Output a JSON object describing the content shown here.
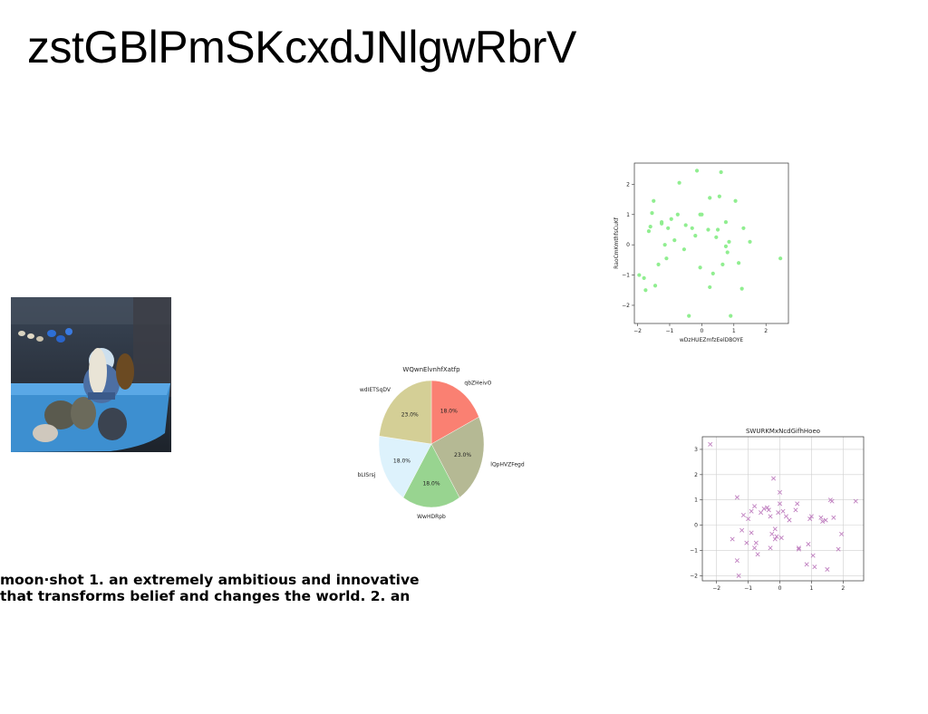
{
  "title": "zstGBlPmSKcxdJNlgwRbrV",
  "caption": {
    "line1": "moon·shot 1. an extremely ambitious and innovative",
    "line2": "that transforms belief and changes the world. 2. an"
  },
  "photo": {
    "icon": "photo-child-wheelbarrow-pumpkins"
  },
  "chart_data": [
    {
      "type": "scatter",
      "title": "",
      "xlabel": "wDzHUEZmfzEelDBOYE",
      "ylabel": "RaoCmKmthfsCuKf",
      "marker": "circle",
      "color": "#90ee90",
      "xlim": [
        -2.1,
        2.7
      ],
      "ylim": [
        -2.6,
        2.7
      ],
      "xticks": [
        -2,
        -1,
        0,
        1,
        2
      ],
      "yticks": [
        -2,
        -1,
        0,
        1,
        2
      ],
      "grid": false,
      "x": [
        -1.95,
        -1.8,
        -1.75,
        -1.65,
        -1.6,
        -1.55,
        -1.5,
        -1.45,
        -1.35,
        -1.25,
        -1.25,
        -1.15,
        -1.1,
        -1.05,
        -0.95,
        -0.85,
        -0.75,
        -0.7,
        -0.55,
        -0.5,
        -0.4,
        -0.3,
        -0.2,
        -0.15,
        -0.05,
        -0.05,
        0.0,
        0.2,
        0.25,
        0.25,
        0.35,
        0.45,
        0.5,
        0.55,
        0.6,
        0.65,
        0.75,
        0.75,
        0.8,
        0.85,
        0.9,
        1.05,
        1.15,
        1.25,
        1.3,
        1.5,
        2.45
      ],
      "y": [
        -1.0,
        -1.1,
        -1.5,
        0.45,
        0.6,
        1.05,
        1.45,
        -1.35,
        -0.65,
        0.75,
        0.7,
        0.0,
        -0.45,
        0.55,
        0.85,
        0.15,
        1.0,
        2.05,
        -0.15,
        0.65,
        -2.35,
        0.55,
        0.3,
        2.45,
        1.0,
        -0.75,
        1.0,
        0.5,
        -1.4,
        1.55,
        -0.95,
        0.25,
        0.5,
        1.6,
        2.4,
        -0.65,
        -0.05,
        0.75,
        -0.25,
        0.1,
        -2.35,
        1.45,
        -0.6,
        -1.45,
        0.55,
        0.1,
        -0.45
      ]
    },
    {
      "type": "pie",
      "title": "WQwnElvnhfXatfp",
      "labels": [
        "qbZHeivO",
        "lQpHVZFegd",
        "WwHDRpb",
        "bLISrsj",
        "wdIETSqDV"
      ],
      "values": [
        18.0,
        23.0,
        18.0,
        18.0,
        23.0
      ],
      "value_labels": [
        "18.0%",
        "23.0%",
        "18.0%",
        "18.0%",
        "23.0%"
      ],
      "colors": [
        "#fa8072",
        "#b5b994",
        "#98d490",
        "#ddf2fc",
        "#d4cf96"
      ],
      "start_angle_deg": 90,
      "counterclock": false
    },
    {
      "type": "scatter",
      "title": "SWURKMxNcdGifhHoeo",
      "xlabel": "",
      "ylabel": "",
      "marker": "x",
      "color": "#c080c0",
      "xlim": [
        -2.45,
        2.65
      ],
      "ylim": [
        -2.2,
        3.5
      ],
      "xticks": [
        -2,
        -1,
        0,
        1,
        2
      ],
      "yticks": [
        -2,
        -1,
        0,
        1,
        2,
        3
      ],
      "grid": true,
      "x": [
        -2.2,
        -1.5,
        -1.35,
        -1.35,
        -1.3,
        -1.2,
        -1.15,
        -1.05,
        -1.0,
        -0.9,
        -0.9,
        -0.8,
        -0.8,
        -0.75,
        -0.7,
        -0.6,
        -0.5,
        -0.4,
        -0.35,
        -0.3,
        -0.3,
        -0.25,
        -0.2,
        -0.15,
        -0.15,
        -0.1,
        -0.05,
        0.0,
        0.0,
        0.05,
        0.1,
        0.2,
        0.3,
        0.5,
        0.55,
        0.6,
        0.6,
        0.85,
        0.9,
        0.95,
        1.0,
        1.05,
        1.1,
        1.3,
        1.35,
        1.45,
        1.5,
        1.6,
        1.65,
        1.7,
        1.85,
        1.95,
        2.4
      ],
      "y": [
        3.2,
        -0.55,
        1.1,
        -1.4,
        -2.0,
        -0.2,
        0.4,
        -0.7,
        0.25,
        0.55,
        -0.3,
        0.75,
        -0.9,
        -0.7,
        -1.15,
        0.5,
        0.65,
        0.7,
        0.6,
        -0.9,
        0.35,
        -0.35,
        1.85,
        -0.15,
        -0.55,
        -0.45,
        0.5,
        1.3,
        0.85,
        -0.5,
        0.55,
        0.35,
        0.2,
        0.6,
        0.85,
        -0.9,
        -0.95,
        -1.55,
        -0.75,
        0.25,
        0.35,
        -1.2,
        -1.65,
        0.3,
        0.15,
        0.2,
        -1.75,
        1.0,
        0.95,
        0.3,
        -0.95,
        -0.35,
        0.95
      ]
    }
  ]
}
